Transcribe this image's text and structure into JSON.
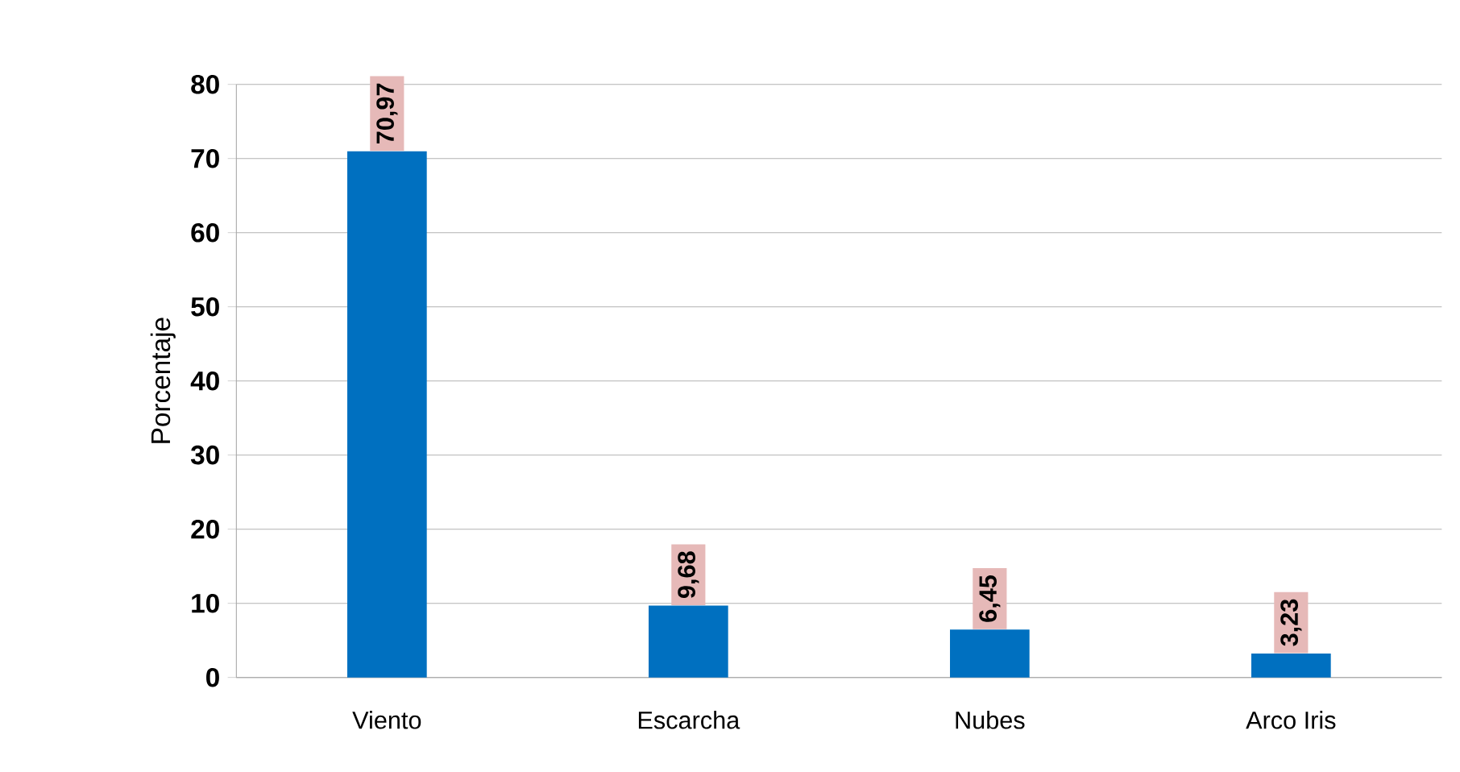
{
  "chart_data": {
    "type": "bar",
    "ylabel": "Porcentaje",
    "categories": [
      "Viento",
      "Escarcha",
      "Nubes",
      "Arco Iris"
    ],
    "values": [
      70.97,
      9.68,
      6.45,
      3.23
    ],
    "value_labels": [
      "70,97",
      "9,68",
      "6,45",
      "3,23"
    ],
    "color": "#0070c0",
    "ylim": [
      0,
      80
    ],
    "yticks": [
      0,
      10,
      20,
      30,
      40,
      50,
      60,
      70,
      80
    ],
    "grid": "y"
  }
}
